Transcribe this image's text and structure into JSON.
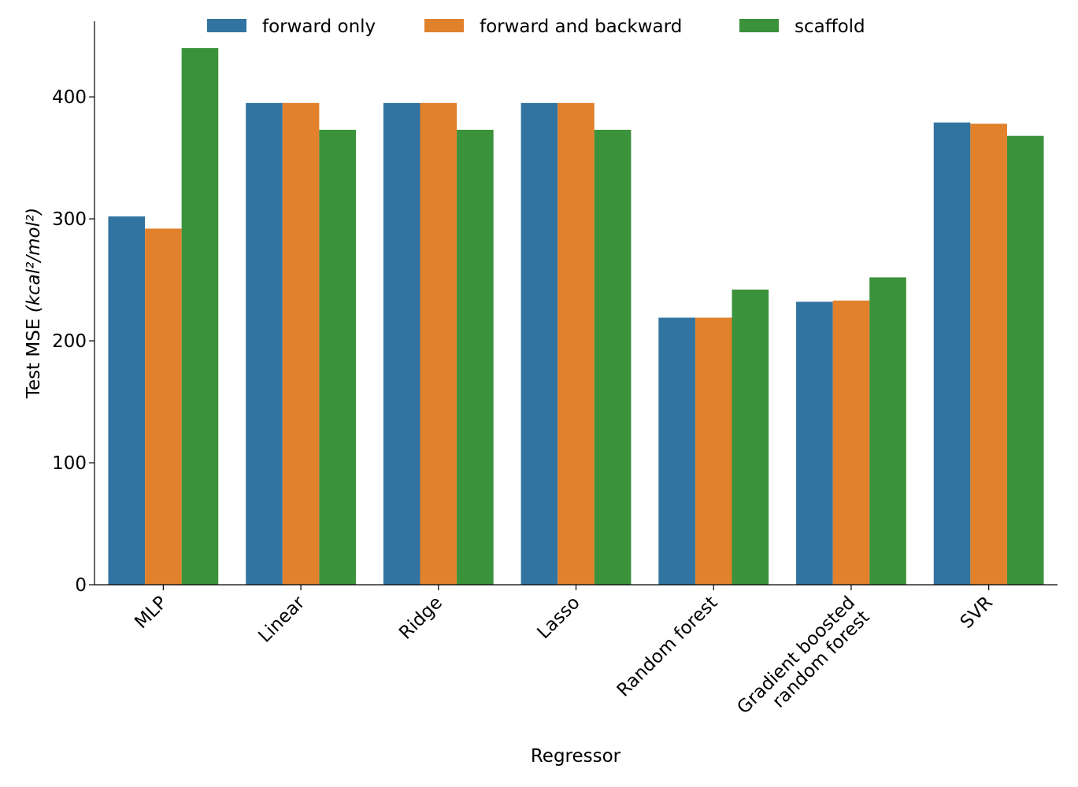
{
  "chart_data": {
    "type": "bar",
    "title": "",
    "xlabel": "Regressor",
    "ylabel": "Test MSE ",
    "ylabel_math": "(kcal²/mol²)",
    "ylim": [
      0,
      462
    ],
    "yticks": [
      0,
      100,
      200,
      300,
      400
    ],
    "grid": false,
    "legend_position": "top",
    "categories": [
      "MLP",
      "Linear",
      "Ridge",
      "Lasso",
      "Random forest",
      "Gradient boosted\nrandom forest",
      "SVR"
    ],
    "series": [
      {
        "name": "forward only",
        "color": "#3274a1",
        "values": [
          302,
          395,
          395,
          395,
          219,
          232,
          379
        ]
      },
      {
        "name": "forward and backward",
        "color": "#e1812c",
        "values": [
          292,
          395,
          395,
          395,
          219,
          233,
          378
        ]
      },
      {
        "name": "scaffold",
        "color": "#3a923a",
        "values": [
          440,
          373,
          373,
          373,
          242,
          252,
          368
        ]
      }
    ]
  }
}
